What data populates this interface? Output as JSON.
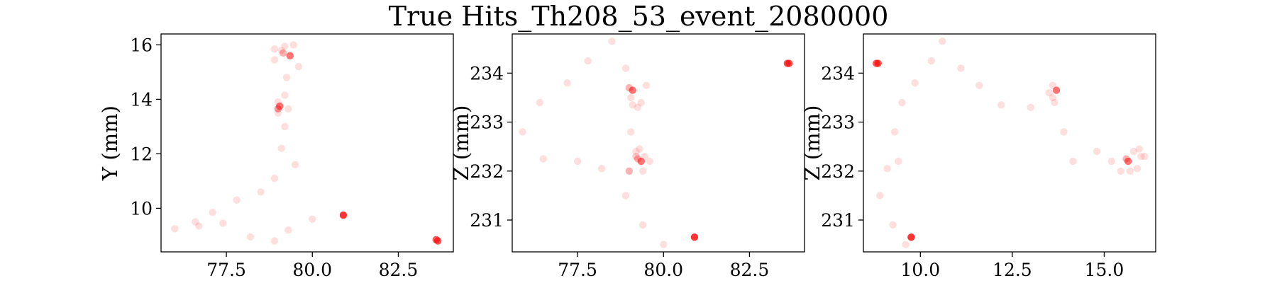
{
  "figure": {
    "title": "True Hits_Th208_53_event_2080000"
  },
  "chart_data": [
    {
      "type": "scatter",
      "name": "XY",
      "title": "",
      "xlabel": "",
      "ylabel": "Y (mm)",
      "xlim": [
        75.6,
        84.1
      ],
      "ylim": [
        8.4,
        16.4
      ],
      "xticks": [
        77.5,
        80.0,
        82.5
      ],
      "xtick_labels": [
        "77.5",
        "80.0",
        "82.5"
      ],
      "yticks": [
        10,
        12,
        14,
        16
      ],
      "ytick_labels": [
        "10",
        "12",
        "14",
        "16"
      ],
      "grid": false,
      "color": "#ff0000",
      "points": [
        {
          "x": 76.0,
          "y": 9.25,
          "alpha": 0.13
        },
        {
          "x": 76.6,
          "y": 9.5,
          "alpha": 0.13
        },
        {
          "x": 76.7,
          "y": 9.35,
          "alpha": 0.13
        },
        {
          "x": 77.1,
          "y": 9.85,
          "alpha": 0.13
        },
        {
          "x": 77.4,
          "y": 9.45,
          "alpha": 0.13
        },
        {
          "x": 77.8,
          "y": 10.3,
          "alpha": 0.13
        },
        {
          "x": 78.2,
          "y": 8.95,
          "alpha": 0.13
        },
        {
          "x": 78.5,
          "y": 10.6,
          "alpha": 0.13
        },
        {
          "x": 78.9,
          "y": 8.8,
          "alpha": 0.13
        },
        {
          "x": 78.9,
          "y": 11.1,
          "alpha": 0.13
        },
        {
          "x": 79.3,
          "y": 9.2,
          "alpha": 0.13
        },
        {
          "x": 79.1,
          "y": 12.2,
          "alpha": 0.13
        },
        {
          "x": 79.5,
          "y": 11.6,
          "alpha": 0.13
        },
        {
          "x": 80.0,
          "y": 9.6,
          "alpha": 0.13
        },
        {
          "x": 79.2,
          "y": 13.0,
          "alpha": 0.13
        },
        {
          "x": 79.0,
          "y": 13.5,
          "alpha": 0.13
        },
        {
          "x": 79.0,
          "y": 13.65,
          "alpha": 0.4
        },
        {
          "x": 79.05,
          "y": 13.75,
          "alpha": 0.55
        },
        {
          "x": 79.0,
          "y": 13.9,
          "alpha": 0.13
        },
        {
          "x": 79.3,
          "y": 13.65,
          "alpha": 0.13
        },
        {
          "x": 79.2,
          "y": 14.15,
          "alpha": 0.13
        },
        {
          "x": 79.25,
          "y": 14.8,
          "alpha": 0.13
        },
        {
          "x": 78.9,
          "y": 15.45,
          "alpha": 0.13
        },
        {
          "x": 78.9,
          "y": 15.85,
          "alpha": 0.13
        },
        {
          "x": 79.1,
          "y": 15.8,
          "alpha": 0.13
        },
        {
          "x": 79.2,
          "y": 15.95,
          "alpha": 0.13
        },
        {
          "x": 79.15,
          "y": 15.7,
          "alpha": 0.3
        },
        {
          "x": 79.35,
          "y": 15.6,
          "alpha": 0.55
        },
        {
          "x": 79.45,
          "y": 16.0,
          "alpha": 0.13
        },
        {
          "x": 79.6,
          "y": 15.2,
          "alpha": 0.13
        },
        {
          "x": 80.9,
          "y": 9.75,
          "alpha": 0.8
        },
        {
          "x": 83.6,
          "y": 8.85,
          "alpha": 0.65
        },
        {
          "x": 83.65,
          "y": 8.8,
          "alpha": 0.65
        }
      ]
    },
    {
      "type": "scatter",
      "name": "XZ",
      "title": "",
      "xlabel": "",
      "ylabel": "Z (mm)",
      "xlim": [
        75.6,
        84.1
      ],
      "ylim": [
        230.35,
        234.8
      ],
      "xticks": [
        77.5,
        80.0,
        82.5
      ],
      "xtick_labels": [
        "77.5",
        "80.0",
        "82.5"
      ],
      "yticks": [
        231,
        232,
        233,
        234
      ],
      "ytick_labels": [
        "231",
        "232",
        "233",
        "234"
      ],
      "grid": false,
      "color": "#ff0000",
      "points": [
        {
          "x": 75.9,
          "y": 232.8,
          "alpha": 0.13
        },
        {
          "x": 76.4,
          "y": 233.4,
          "alpha": 0.13
        },
        {
          "x": 76.5,
          "y": 232.25,
          "alpha": 0.13
        },
        {
          "x": 77.2,
          "y": 233.8,
          "alpha": 0.13
        },
        {
          "x": 77.5,
          "y": 232.2,
          "alpha": 0.13
        },
        {
          "x": 77.8,
          "y": 234.25,
          "alpha": 0.13
        },
        {
          "x": 78.2,
          "y": 232.05,
          "alpha": 0.13
        },
        {
          "x": 78.5,
          "y": 234.65,
          "alpha": 0.13
        },
        {
          "x": 78.9,
          "y": 231.5,
          "alpha": 0.13
        },
        {
          "x": 78.9,
          "y": 234.1,
          "alpha": 0.13
        },
        {
          "x": 79.0,
          "y": 232.0,
          "alpha": 0.3
        },
        {
          "x": 79.05,
          "y": 232.8,
          "alpha": 0.13
        },
        {
          "x": 79.05,
          "y": 233.5,
          "alpha": 0.13
        },
        {
          "x": 79.0,
          "y": 233.7,
          "alpha": 0.3
        },
        {
          "x": 79.1,
          "y": 233.65,
          "alpha": 0.55
        },
        {
          "x": 79.1,
          "y": 233.35,
          "alpha": 0.13
        },
        {
          "x": 79.25,
          "y": 233.3,
          "alpha": 0.13
        },
        {
          "x": 79.35,
          "y": 233.4,
          "alpha": 0.13
        },
        {
          "x": 79.5,
          "y": 233.75,
          "alpha": 0.13
        },
        {
          "x": 79.2,
          "y": 232.4,
          "alpha": 0.13
        },
        {
          "x": 79.3,
          "y": 232.45,
          "alpha": 0.13
        },
        {
          "x": 79.2,
          "y": 232.3,
          "alpha": 0.2
        },
        {
          "x": 79.25,
          "y": 232.25,
          "alpha": 0.3
        },
        {
          "x": 79.35,
          "y": 232.2,
          "alpha": 0.55
        },
        {
          "x": 79.45,
          "y": 232.3,
          "alpha": 0.13
        },
        {
          "x": 79.4,
          "y": 232.0,
          "alpha": 0.13
        },
        {
          "x": 79.6,
          "y": 232.2,
          "alpha": 0.13
        },
        {
          "x": 79.4,
          "y": 230.9,
          "alpha": 0.13
        },
        {
          "x": 80.0,
          "y": 230.5,
          "alpha": 0.13
        },
        {
          "x": 80.9,
          "y": 230.65,
          "alpha": 0.8
        },
        {
          "x": 83.6,
          "y": 234.2,
          "alpha": 0.65
        },
        {
          "x": 83.65,
          "y": 234.2,
          "alpha": 0.65
        }
      ]
    },
    {
      "type": "scatter",
      "name": "YZ",
      "title": "",
      "xlabel": "",
      "ylabel": "Z (mm)",
      "xlim": [
        8.45,
        16.4
      ],
      "ylim": [
        230.35,
        234.8
      ],
      "xticks": [
        10.0,
        12.5,
        15.0
      ],
      "xtick_labels": [
        "10.0",
        "12.5",
        "15.0"
      ],
      "yticks": [
        231,
        232,
        233,
        234
      ],
      "ytick_labels": [
        "231",
        "232",
        "233",
        "234"
      ],
      "grid": false,
      "color": "#ff0000",
      "points": [
        {
          "x": 8.8,
          "y": 234.2,
          "alpha": 0.65
        },
        {
          "x": 8.85,
          "y": 234.2,
          "alpha": 0.65
        },
        {
          "x": 8.9,
          "y": 231.5,
          "alpha": 0.13
        },
        {
          "x": 9.1,
          "y": 232.05,
          "alpha": 0.13
        },
        {
          "x": 9.25,
          "y": 230.9,
          "alpha": 0.13
        },
        {
          "x": 9.3,
          "y": 232.8,
          "alpha": 0.13
        },
        {
          "x": 9.4,
          "y": 232.2,
          "alpha": 0.13
        },
        {
          "x": 9.5,
          "y": 233.4,
          "alpha": 0.13
        },
        {
          "x": 9.6,
          "y": 230.5,
          "alpha": 0.13
        },
        {
          "x": 9.75,
          "y": 230.65,
          "alpha": 0.8
        },
        {
          "x": 9.85,
          "y": 233.8,
          "alpha": 0.13
        },
        {
          "x": 10.3,
          "y": 234.25,
          "alpha": 0.13
        },
        {
          "x": 10.6,
          "y": 234.65,
          "alpha": 0.13
        },
        {
          "x": 11.1,
          "y": 234.1,
          "alpha": 0.13
        },
        {
          "x": 11.6,
          "y": 233.75,
          "alpha": 0.13
        },
        {
          "x": 12.2,
          "y": 233.35,
          "alpha": 0.13
        },
        {
          "x": 13.0,
          "y": 233.3,
          "alpha": 0.13
        },
        {
          "x": 13.5,
          "y": 233.6,
          "alpha": 0.13
        },
        {
          "x": 13.6,
          "y": 233.5,
          "alpha": 0.13
        },
        {
          "x": 13.6,
          "y": 233.75,
          "alpha": 0.13
        },
        {
          "x": 13.65,
          "y": 233.4,
          "alpha": 0.13
        },
        {
          "x": 13.7,
          "y": 233.65,
          "alpha": 0.55
        },
        {
          "x": 13.9,
          "y": 232.8,
          "alpha": 0.13
        },
        {
          "x": 14.15,
          "y": 232.2,
          "alpha": 0.13
        },
        {
          "x": 14.8,
          "y": 232.4,
          "alpha": 0.13
        },
        {
          "x": 15.2,
          "y": 232.2,
          "alpha": 0.13
        },
        {
          "x": 15.45,
          "y": 232.0,
          "alpha": 0.13
        },
        {
          "x": 15.6,
          "y": 232.25,
          "alpha": 0.3
        },
        {
          "x": 15.65,
          "y": 232.2,
          "alpha": 0.55
        },
        {
          "x": 15.7,
          "y": 232.0,
          "alpha": 0.13
        },
        {
          "x": 15.8,
          "y": 232.4,
          "alpha": 0.13
        },
        {
          "x": 15.9,
          "y": 232.05,
          "alpha": 0.13
        },
        {
          "x": 15.95,
          "y": 232.45,
          "alpha": 0.13
        },
        {
          "x": 16.0,
          "y": 232.3,
          "alpha": 0.13
        },
        {
          "x": 16.1,
          "y": 232.3,
          "alpha": 0.13
        }
      ]
    }
  ]
}
